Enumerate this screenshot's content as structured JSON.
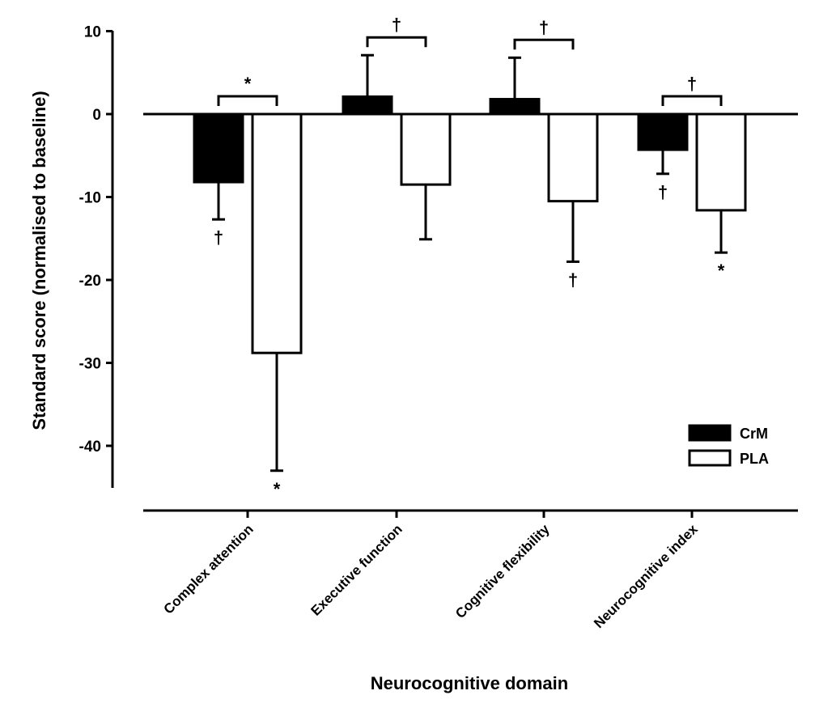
{
  "chart_data": {
    "type": "bar",
    "title": "",
    "xlabel": "Neurocognitive domain",
    "ylabel": "Standard score (normalised to baseline)",
    "ylim": [
      -45,
      10
    ],
    "yticks": [
      10,
      0,
      -10,
      -20,
      -30,
      -40
    ],
    "ytick_labels": [
      "10",
      "0",
      "-10",
      "-20",
      "-30",
      "-40"
    ],
    "categories": [
      "Complex attention",
      "Executive function",
      "Cognitive flexibility",
      "Neurocognitive index"
    ],
    "series": [
      {
        "name": "CrM",
        "fill": "#000000",
        "values": [
          -8.2,
          2.1,
          1.8,
          -4.3
        ],
        "errors": [
          4.5,
          5.0,
          5.0,
          2.9
        ],
        "markers": [
          "†",
          "",
          "",
          "†"
        ]
      },
      {
        "name": "PLA",
        "fill": "#ffffff",
        "values": [
          -28.8,
          -8.5,
          -10.5,
          -11.6
        ],
        "errors": [
          14.2,
          6.6,
          7.3,
          5.1
        ],
        "markers": [
          "*",
          "",
          "†",
          "*"
        ]
      }
    ],
    "between_group": [
      "*",
      "†",
      "†",
      "†"
    ],
    "legend_position": "bottom-right",
    "grid": false
  }
}
